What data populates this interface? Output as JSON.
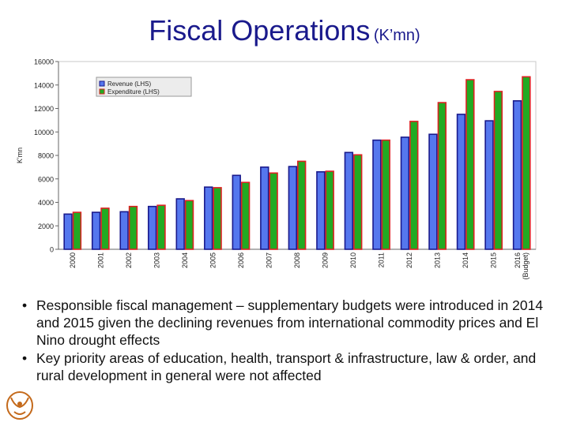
{
  "title": {
    "main": "Fiscal Operations",
    "sub": "(K’mn)"
  },
  "bullets": [
    "Responsible fiscal management – supplementary budgets were introduced in 2014 and 2015 given the declining revenues from international commodity prices and El Nino drought effects",
    "Key priority areas of education, health, transport & infrastructure, law & order, and rural development in general were not affected"
  ],
  "logo": {
    "name": "coat-of-arms-logo"
  },
  "chart_data": {
    "type": "bar",
    "categories": [
      "2000",
      "2001",
      "2002",
      "2003",
      "2004",
      "2005",
      "2006",
      "2007",
      "2008",
      "2009",
      "2010",
      "2011",
      "2012",
      "2013",
      "2014",
      "2015",
      "2016 (Budget)"
    ],
    "series": [
      {
        "name": "Revenue (LHS)",
        "color": "#5577ee",
        "border": "#1a1a8c",
        "values": [
          3000,
          3150,
          3200,
          3650,
          4300,
          5300,
          6300,
          7000,
          7050,
          6600,
          8250,
          9300,
          9550,
          9800,
          11500,
          10950,
          12650
        ]
      },
      {
        "name": "Expenditure (LHS)",
        "color": "#22aa22",
        "border": "#dd2222",
        "values": [
          3150,
          3500,
          3650,
          3750,
          4150,
          5250,
          5700,
          6500,
          7500,
          6650,
          8050,
          9300,
          10900,
          12500,
          14450,
          13450,
          14700
        ]
      }
    ],
    "ylabel": "K'mn",
    "ylim": [
      0,
      16000
    ],
    "yticks": [
      0,
      2000,
      4000,
      6000,
      8000,
      10000,
      12000,
      14000,
      16000
    ],
    "legend_position": "top-left",
    "grid": false
  }
}
